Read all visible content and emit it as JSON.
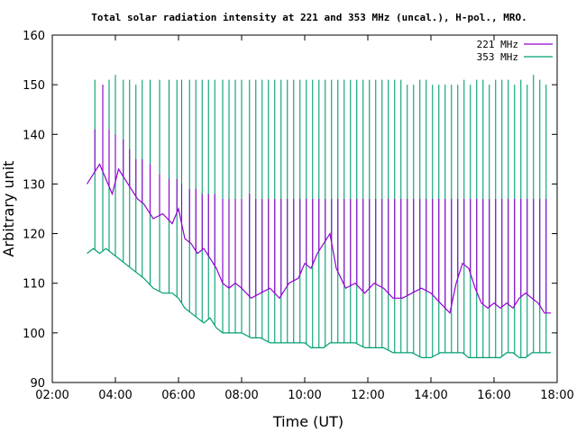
{
  "chart_data": {
    "type": "line",
    "title": "Total solar radiation intensity at 221 and 353 MHz (uncal.), H-pol., MRO.",
    "xlabel": "Time (UT)",
    "ylabel": "Arbitrary unit",
    "xlim": [
      2.0,
      18.0
    ],
    "ylim": [
      90,
      160
    ],
    "x_ticks": [
      "02:00",
      "04:00",
      "06:00",
      "08:00",
      "10:00",
      "12:00",
      "14:00",
      "16:00",
      "18:00"
    ],
    "y_ticks": [
      "90",
      "100",
      "110",
      "120",
      "130",
      "140",
      "150",
      "160"
    ],
    "grid": false,
    "legend_position": "top-right",
    "series": [
      {
        "name": "221 MHz",
        "color": "#9400d3",
        "x": [
          3.1,
          3.3,
          3.5,
          3.7,
          3.9,
          4.1,
          4.3,
          4.5,
          4.7,
          4.9,
          5.2,
          5.5,
          5.8,
          6.0,
          6.2,
          6.4,
          6.6,
          6.8,
          7.0,
          7.2,
          7.4,
          7.6,
          7.8,
          8.0,
          8.3,
          8.6,
          8.9,
          9.2,
          9.5,
          9.8,
          10.0,
          10.2,
          10.4,
          10.6,
          10.8,
          11.0,
          11.3,
          11.6,
          11.9,
          12.2,
          12.5,
          12.8,
          13.1,
          13.4,
          13.7,
          14.0,
          14.3,
          14.6,
          14.8,
          15.0,
          15.2,
          15.4,
          15.6,
          15.8,
          16.0,
          16.2,
          16.4,
          16.6,
          16.8,
          17.0,
          17.2,
          17.4,
          17.6,
          17.8
        ],
        "values": [
          130,
          132,
          134,
          131,
          128,
          133,
          131,
          129,
          127,
          126,
          123,
          124,
          122,
          125,
          119,
          118,
          116,
          117,
          115,
          113,
          110,
          109,
          110,
          109,
          107,
          108,
          109,
          107,
          110,
          111,
          114,
          113,
          116,
          118,
          120,
          113,
          109,
          110,
          108,
          110,
          109,
          107,
          107,
          108,
          109,
          108,
          106,
          104,
          110,
          114,
          113,
          109,
          106,
          105,
          106,
          105,
          106,
          105,
          107,
          108,
          107,
          106,
          104,
          104
        ]
      },
      {
        "name": "353 MHz",
        "color": "#009e73",
        "x": [
          3.1,
          3.3,
          3.5,
          3.7,
          3.9,
          4.1,
          4.3,
          4.5,
          4.7,
          4.9,
          5.2,
          5.5,
          5.8,
          6.0,
          6.2,
          6.4,
          6.6,
          6.8,
          7.0,
          7.2,
          7.4,
          7.6,
          7.8,
          8.0,
          8.3,
          8.6,
          8.9,
          9.2,
          9.5,
          9.8,
          10.0,
          10.2,
          10.4,
          10.6,
          10.8,
          11.0,
          11.3,
          11.6,
          11.9,
          12.2,
          12.5,
          12.8,
          13.1,
          13.4,
          13.7,
          14.0,
          14.3,
          14.6,
          14.8,
          15.0,
          15.2,
          15.4,
          15.6,
          15.8,
          16.0,
          16.2,
          16.4,
          16.6,
          16.8,
          17.0,
          17.2,
          17.4,
          17.6,
          17.8
        ],
        "values": [
          116,
          117,
          116,
          117,
          116,
          115,
          114,
          113,
          112,
          111,
          109,
          108,
          108,
          107,
          105,
          104,
          103,
          102,
          103,
          101,
          100,
          100,
          100,
          100,
          99,
          99,
          98,
          98,
          98,
          98,
          98,
          97,
          97,
          97,
          98,
          98,
          98,
          98,
          97,
          97,
          97,
          96,
          96,
          96,
          95,
          95,
          96,
          96,
          96,
          96,
          95,
          95,
          95,
          95,
          95,
          95,
          96,
          96,
          95,
          95,
          96,
          96,
          96,
          96
        ]
      }
    ],
    "spikes": {
      "x": [
        3.35,
        3.6,
        3.8,
        4.0,
        4.25,
        4.45,
        4.65,
        4.85,
        5.1,
        5.4,
        5.7,
        5.95,
        6.1,
        6.35,
        6.55,
        6.75,
        6.95,
        7.15,
        7.4,
        7.6,
        7.8,
        8.0,
        8.25,
        8.45,
        8.65,
        8.85,
        9.05,
        9.25,
        9.45,
        9.65,
        9.85,
        10.05,
        10.25,
        10.45,
        10.65,
        10.85,
        11.05,
        11.25,
        11.45,
        11.65,
        11.85,
        12.05,
        12.25,
        12.45,
        12.65,
        12.85,
        13.05,
        13.25,
        13.45,
        13.65,
        13.85,
        14.05,
        14.25,
        14.45,
        14.65,
        14.85,
        15.05,
        15.25,
        15.45,
        15.65,
        15.85,
        16.05,
        16.25,
        16.45,
        16.65,
        16.85,
        17.05,
        17.25,
        17.45,
        17.65
      ],
      "peak_353MHz": [
        151,
        150,
        151,
        152,
        151,
        151,
        150,
        151,
        151,
        151,
        151,
        151,
        151,
        151,
        151,
        151,
        151,
        151,
        151,
        151,
        151,
        151,
        151,
        151,
        151,
        151,
        151,
        151,
        151,
        151,
        151,
        151,
        151,
        151,
        151,
        151,
        151,
        151,
        151,
        151,
        151,
        151,
        151,
        151,
        151,
        151,
        151,
        150,
        150,
        151,
        151,
        150,
        150,
        150,
        150,
        150,
        151,
        150,
        151,
        151,
        150,
        151,
        151,
        151,
        150,
        151,
        150,
        152,
        151,
        150
      ],
      "peak_221MHz": [
        141,
        150,
        141,
        140,
        139,
        137,
        135,
        135,
        134,
        132,
        131,
        131,
        130,
        129,
        129,
        128,
        128,
        128,
        127,
        127,
        127,
        127,
        128,
        127,
        127,
        127,
        127,
        127,
        127,
        127,
        127,
        127,
        127,
        127,
        127,
        127,
        127,
        127,
        127,
        127,
        127,
        127,
        127,
        127,
        127,
        127,
        127,
        127,
        127,
        127,
        127,
        127,
        127,
        127,
        127,
        127,
        127,
        127,
        127,
        127,
        127,
        127,
        127,
        127,
        127,
        127,
        127,
        127,
        127,
        127
      ]
    }
  }
}
